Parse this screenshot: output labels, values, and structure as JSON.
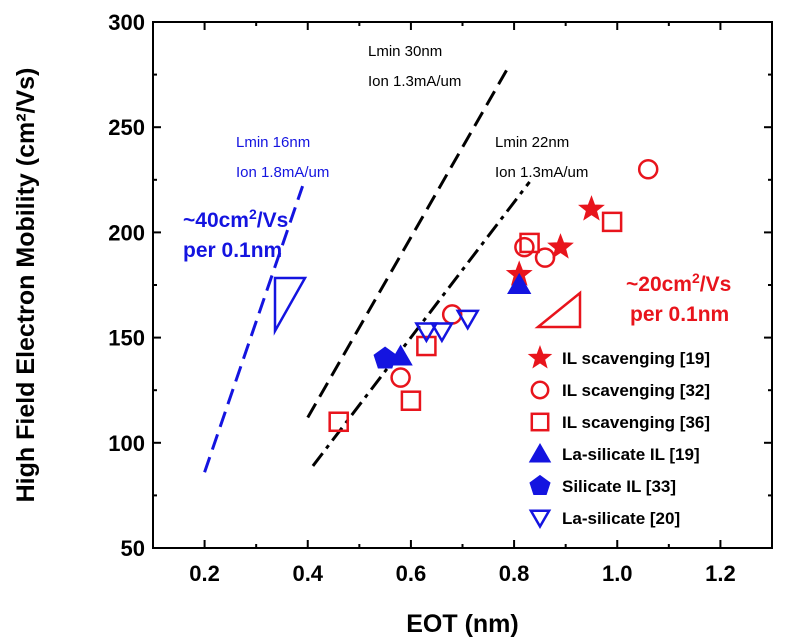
{
  "chart_data": {
    "type": "scatter",
    "xlabel": "EOT (nm)",
    "ylabel": "High Field Electron Mobility (cm²/Vs)",
    "xlim": [
      0.1,
      1.3
    ],
    "ylim": [
      50,
      300
    ],
    "xticks": [
      "0.2",
      "0.4",
      "0.6",
      "0.8",
      "1.0",
      "1.2"
    ],
    "yticks": [
      "50",
      "100",
      "150",
      "200",
      "250",
      "300"
    ],
    "grid": false,
    "legend_position": "bottom-right",
    "colors": {
      "red": "#e8141c",
      "blue": "#1414e0",
      "black": "#000000"
    },
    "series": [
      {
        "name": "IL scavenging [19]",
        "marker": "star",
        "color": "#e8141c",
        "filled": true,
        "points": [
          [
            0.81,
            180
          ],
          [
            0.89,
            193
          ],
          [
            0.95,
            211
          ]
        ]
      },
      {
        "name": "IL scavenging [32]",
        "marker": "circle",
        "color": "#e8141c",
        "filled": false,
        "points": [
          [
            0.58,
            131
          ],
          [
            0.68,
            161
          ],
          [
            0.82,
            193
          ],
          [
            0.86,
            188
          ],
          [
            1.06,
            230
          ]
        ]
      },
      {
        "name": "IL scavenging [36]",
        "marker": "square",
        "color": "#e8141c",
        "filled": false,
        "points": [
          [
            0.46,
            110
          ],
          [
            0.6,
            120
          ],
          [
            0.63,
            146
          ],
          [
            0.83,
            195
          ],
          [
            0.99,
            205
          ]
        ]
      },
      {
        "name": "La-silicate IL [19]",
        "marker": "triangle-up",
        "color": "#1414e0",
        "filled": true,
        "points": [
          [
            0.58,
            141
          ],
          [
            0.81,
            175
          ]
        ]
      },
      {
        "name": "Silicate IL [33]",
        "marker": "pentagon",
        "color": "#1414e0",
        "filled": true,
        "points": [
          [
            0.55,
            140
          ]
        ]
      },
      {
        "name": "La-silicate [20]",
        "marker": "triangle-down",
        "color": "#1414e0",
        "filled": false,
        "points": [
          [
            0.63,
            153
          ],
          [
            0.66,
            153
          ],
          [
            0.71,
            159
          ]
        ]
      }
    ],
    "trend_lines": [
      {
        "label_lines": [
          "Lmin 16nm",
          "Ion 1.8mA/um"
        ],
        "style": "dashed",
        "color": "#1414e0",
        "points": [
          [
            0.2,
            86
          ],
          [
            0.39,
            222
          ]
        ]
      },
      {
        "label_lines": [
          "Lmin 30nm",
          "Ion 1.3mA/um"
        ],
        "style": "dashed",
        "color": "#000000",
        "points": [
          [
            0.4,
            112
          ],
          [
            0.79,
            279
          ]
        ]
      },
      {
        "label_lines": [
          "Lmin 22nm",
          "Ion 1.3mA/um"
        ],
        "style": "dashdot",
        "color": "#000000",
        "points": [
          [
            0.41,
            89
          ],
          [
            0.83,
            224
          ]
        ]
      }
    ],
    "slope_annotations": [
      {
        "text": "~40cm²/Vs",
        "line2": "per 0.1nm",
        "color": "#1414e0"
      },
      {
        "text": "~20cm²/Vs",
        "line2": "per 0.1nm",
        "color": "#e8141c"
      }
    ]
  }
}
